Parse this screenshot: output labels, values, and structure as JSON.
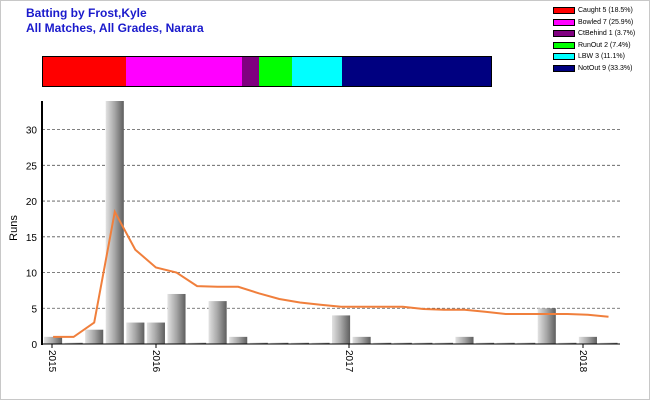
{
  "title": {
    "line1": "Batting by Frost,Kyle",
    "line2": "All Matches, All Grades, Narara"
  },
  "legend": [
    {
      "label": "Caught 5 (18.5%)",
      "color": "#ff0000"
    },
    {
      "label": "Bowled 7 (25.9%)",
      "color": "#ff00ff"
    },
    {
      "label": "CtBehind 1 (3.7%)",
      "color": "#800080"
    },
    {
      "label": "RunOut 2 (7.4%)",
      "color": "#00ff00"
    },
    {
      "label": "LBW 3 (11.1%)",
      "color": "#00ffff"
    },
    {
      "label": "NotOut 9 (33.3%)",
      "color": "#000080"
    }
  ],
  "dismissal_breakdown": [
    {
      "name": "Caught",
      "count": 5,
      "color": "#ff0000"
    },
    {
      "name": "Bowled",
      "count": 7,
      "color": "#ff00ff"
    },
    {
      "name": "CtBehind",
      "count": 1,
      "color": "#800080"
    },
    {
      "name": "RunOut",
      "count": 2,
      "color": "#00ff00"
    },
    {
      "name": "LBW",
      "count": 3,
      "color": "#00ffff"
    },
    {
      "name": "NotOut",
      "count": 9,
      "color": "#000080"
    }
  ],
  "chart_data": {
    "type": "bar",
    "ylabel": "Runs",
    "ylim": [
      0,
      34
    ],
    "yticks": [
      0,
      5,
      10,
      15,
      20,
      25,
      30
    ],
    "grid": true,
    "xtick_labels": [
      "2015",
      "2016",
      "2017",
      "2018"
    ],
    "series": [
      {
        "kind": "bar",
        "values": [
          1,
          0,
          2,
          34,
          3,
          3,
          7,
          0,
          6,
          1,
          0,
          0,
          0,
          0,
          4,
          1,
          0,
          0,
          0,
          0,
          1,
          0,
          0,
          0,
          5,
          0,
          1,
          0
        ]
      },
      {
        "kind": "line",
        "color": "#f07f3c",
        "values": [
          1,
          1,
          3,
          18.5,
          13.2,
          10.7,
          10,
          8.1,
          8,
          8,
          7.1,
          6.3,
          5.8,
          5.5,
          5.2,
          5.2,
          5.2,
          5.2,
          4.9,
          4.8,
          4.8,
          4.5,
          4.2,
          4.2,
          4.2,
          4.2,
          4.1,
          3.8
        ]
      }
    ]
  }
}
